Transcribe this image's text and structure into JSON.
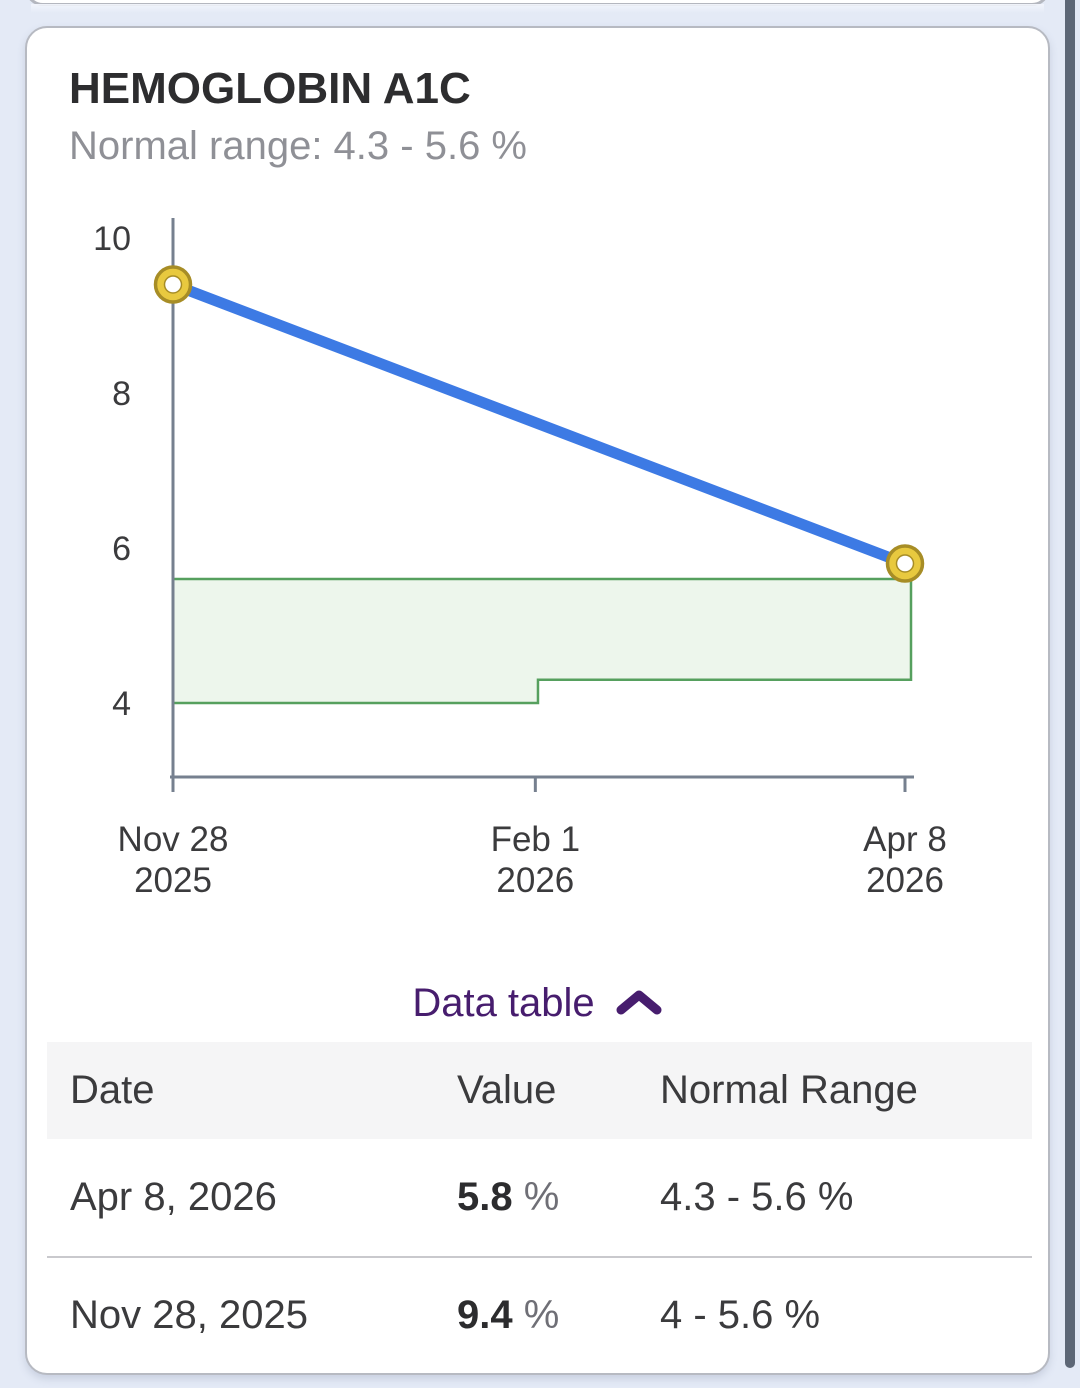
{
  "header": {
    "title": "HEMOGLOBIN A1C",
    "subtitle": "Normal range: 4.3 - 5.6 %"
  },
  "toggle": {
    "label": "Data table",
    "icon": "chevron-up"
  },
  "table": {
    "headers": {
      "date": "Date",
      "value": "Value",
      "range": "Normal Range"
    },
    "rows": [
      {
        "date": "Apr 8, 2026",
        "value": "5.8",
        "unit": "%",
        "range": "4.3 - 5.6 %"
      },
      {
        "date": "Nov 28, 2025",
        "value": "9.4",
        "unit": "%",
        "range": "4 - 5.6 %"
      }
    ]
  },
  "chart_data": {
    "type": "line",
    "title": "HEMOGLOBIN A1C",
    "unit": "%",
    "normal_range_label": "4.3 - 5.6 %",
    "y_ticks": [
      10,
      8,
      6,
      4
    ],
    "ylim": [
      3.2,
      10.4
    ],
    "grid": false,
    "x_ticks": [
      {
        "line1": "Nov 28",
        "line2": "2025",
        "frac": 0
      },
      {
        "line1": "Feb 1",
        "line2": "2026",
        "frac": 0.495
      },
      {
        "line1": "Apr 8",
        "line2": "2026",
        "frac": 1
      }
    ],
    "series": [
      {
        "name": "Hemoglobin A1C",
        "points": [
          {
            "label": "Nov 28, 2025",
            "frac": 0,
            "value": 9.4
          },
          {
            "label": "Apr 8, 2026",
            "frac": 1,
            "value": 5.8
          }
        ]
      }
    ],
    "normal_band_segments": [
      {
        "x0_frac": 0,
        "x1_frac": 0.4986,
        "low": 4,
        "high": 5.6
      },
      {
        "x0_frac": 0.4986,
        "x1_frac": 1.0082,
        "low": 4.3,
        "high": 5.6
      }
    ],
    "colors": {
      "line": "#3d7ae4",
      "marker_fill": "#e8c93f",
      "marker_stroke": "#a78d26",
      "marker_center": "#ffffff",
      "band_fill": "#edf6ec",
      "band_stroke": "#56a05e",
      "axis": "#76808f",
      "tick_text": "#3b3b3d",
      "toggle_purple": "#471d6e"
    }
  }
}
